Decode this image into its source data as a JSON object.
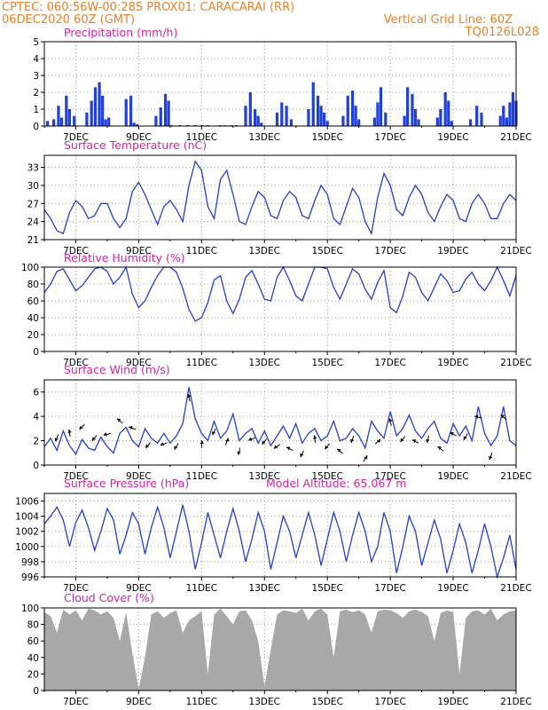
{
  "header": {
    "left_line1": "CPTEC:   060:56W-00:28S   PROX01: CARACARAI (RR)",
    "left_line2": "06DEC2020 60Z (GMT)",
    "right_line2": "Vertical Grid Line: 60Z",
    "right_line3": "TQ0126L028"
  },
  "colors": {
    "line": "#1f3fe0",
    "bar": "#1f3fe0",
    "cloud": "#a8a8a8",
    "title": "#e020a0",
    "header": "#f08020"
  },
  "x_labels": [
    "7DEC",
    "9DEC",
    "11DEC",
    "13DEC",
    "15DEC",
    "17DEC",
    "19DEC",
    "21DEC"
  ],
  "chart_data": [
    {
      "type": "bar",
      "title": "Precipitation (mm/h)",
      "ylim": [
        0,
        5
      ],
      "yticks": [
        "0",
        "1",
        "2",
        "3",
        "4",
        "5"
      ],
      "x": [
        6.1,
        6.3,
        6.45,
        6.55,
        6.7,
        6.8,
        6.95,
        7.35,
        7.5,
        7.62,
        7.75,
        7.85,
        7.95,
        8.05,
        8.6,
        8.75,
        8.85,
        8.95,
        9.55,
        9.7,
        9.85,
        9.95,
        10.05,
        10.3,
        10.55,
        10.8,
        11.0,
        11.2,
        11.6,
        11.75,
        11.95,
        12.1,
        12.4,
        12.55,
        12.7,
        12.8,
        12.9,
        13.4,
        13.55,
        13.7,
        13.85,
        14.4,
        14.55,
        14.7,
        14.8,
        14.9,
        15.0,
        15.5,
        15.65,
        15.8,
        15.9,
        16.0,
        16.5,
        16.6,
        16.7,
        16.85,
        17.45,
        17.55,
        17.7,
        17.8,
        17.9,
        18.5,
        18.6,
        18.75,
        18.85,
        18.95,
        19.55,
        19.75,
        19.9,
        20.5,
        20.6,
        20.7,
        20.8,
        20.9,
        21.0
      ],
      "values": [
        0.3,
        0.4,
        1.2,
        0.5,
        1.8,
        1.0,
        0.6,
        0.8,
        1.5,
        2.3,
        2.6,
        1.8,
        0.4,
        0.5,
        1.6,
        1.8,
        0.2,
        0.1,
        0.6,
        1.1,
        1.9,
        1.5,
        0.05,
        0.05,
        0.05,
        0.05,
        0.05,
        0.05,
        0.05,
        0.05,
        0.05,
        0.05,
        1.2,
        2.0,
        1.0,
        0.6,
        0.2,
        0.8,
        1.4,
        1.2,
        0.4,
        1.0,
        2.6,
        1.8,
        1.2,
        0.8,
        0.3,
        0.6,
        1.8,
        2.1,
        1.2,
        0.4,
        0.5,
        1.4,
        2.3,
        0.8,
        0.6,
        2.3,
        1.9,
        1.0,
        0.4,
        0.5,
        1.0,
        2.0,
        1.5,
        0.3,
        0.4,
        1.2,
        0.8,
        0.6,
        1.2,
        0.5,
        1.4,
        2.0,
        1.5
      ]
    },
    {
      "type": "line",
      "title": "Surface Temperature (nC)",
      "ylim": [
        21,
        35
      ],
      "yticks": [
        "21",
        "24",
        "27",
        "30",
        "33"
      ],
      "x": [
        6.0,
        6.2,
        6.4,
        6.6,
        6.8,
        7.0,
        7.2,
        7.4,
        7.6,
        7.8,
        8.0,
        8.2,
        8.4,
        8.6,
        8.8,
        9.0,
        9.2,
        9.4,
        9.6,
        9.8,
        10.0,
        10.2,
        10.4,
        10.6,
        10.8,
        11.0,
        11.2,
        11.4,
        11.6,
        11.8,
        12.0,
        12.2,
        12.4,
        12.6,
        12.8,
        13.0,
        13.2,
        13.4,
        13.6,
        13.8,
        14.0,
        14.2,
        14.4,
        14.6,
        14.8,
        15.0,
        15.2,
        15.4,
        15.6,
        15.8,
        16.0,
        16.2,
        16.4,
        16.6,
        16.8,
        17.0,
        17.2,
        17.4,
        17.6,
        17.8,
        18.0,
        18.2,
        18.4,
        18.6,
        18.8,
        19.0,
        19.2,
        19.4,
        19.6,
        19.8,
        20.0,
        20.2,
        20.4,
        20.6,
        20.8,
        21.0
      ],
      "values": [
        26,
        24.5,
        22.5,
        22,
        25.5,
        27.5,
        26.5,
        24.5,
        25,
        27,
        27,
        24.5,
        23,
        24.5,
        29,
        30.5,
        28.5,
        26,
        23.5,
        26.5,
        27.5,
        26,
        24,
        30,
        34,
        32.5,
        26.5,
        24.5,
        31,
        32.5,
        28.5,
        24,
        23.5,
        26.5,
        29,
        28,
        25,
        24.5,
        27.5,
        29,
        28,
        25,
        24.5,
        27.5,
        30,
        28.5,
        24.5,
        23.5,
        26.5,
        29.5,
        28,
        24,
        22,
        28,
        32,
        30,
        26,
        25,
        28,
        30,
        28.5,
        25.5,
        24,
        26.5,
        28.5,
        27.5,
        24.5,
        24,
        27,
        28.5,
        27,
        24.5,
        24.5,
        27,
        28.5,
        27.5
      ]
    },
    {
      "type": "line",
      "title": "Relative Humidity (%)",
      "ylim": [
        0,
        100
      ],
      "yticks": [
        "0",
        "20",
        "40",
        "60",
        "80",
        "100"
      ],
      "x": [
        6.0,
        6.2,
        6.4,
        6.6,
        6.8,
        7.0,
        7.2,
        7.4,
        7.6,
        7.8,
        8.0,
        8.2,
        8.4,
        8.6,
        8.8,
        9.0,
        9.2,
        9.4,
        9.6,
        9.8,
        10.0,
        10.2,
        10.4,
        10.6,
        10.8,
        11.0,
        11.2,
        11.4,
        11.6,
        11.8,
        12.0,
        12.2,
        12.4,
        12.6,
        12.8,
        13.0,
        13.2,
        13.4,
        13.6,
        13.8,
        14.0,
        14.2,
        14.4,
        14.6,
        14.8,
        15.0,
        15.2,
        15.4,
        15.6,
        15.8,
        16.0,
        16.2,
        16.4,
        16.6,
        16.8,
        17.0,
        17.2,
        17.4,
        17.6,
        17.8,
        18.0,
        18.2,
        18.4,
        18.6,
        18.8,
        19.0,
        19.2,
        19.4,
        19.6,
        19.8,
        20.0,
        20.2,
        20.4,
        20.6,
        20.8,
        21.0
      ],
      "values": [
        70,
        80,
        95,
        98,
        85,
        72,
        78,
        88,
        98,
        100,
        95,
        80,
        88,
        100,
        68,
        52,
        60,
        76,
        90,
        100,
        100,
        94,
        75,
        50,
        36,
        40,
        58,
        85,
        90,
        60,
        45,
        62,
        88,
        96,
        80,
        62,
        60,
        88,
        100,
        84,
        66,
        60,
        80,
        100,
        100,
        98,
        76,
        62,
        80,
        98,
        92,
        74,
        62,
        82,
        96,
        52,
        46,
        66,
        94,
        88,
        70,
        60,
        76,
        92,
        84,
        70,
        72,
        86,
        94,
        80,
        72,
        84,
        100,
        84,
        66,
        90
      ]
    },
    {
      "type": "line",
      "title": "Surface Wind (m/s)",
      "ylim": [
        0,
        7
      ],
      "yticks": [
        "0",
        "2",
        "4",
        "6"
      ],
      "x": [
        6.0,
        6.2,
        6.4,
        6.6,
        6.8,
        7.0,
        7.2,
        7.4,
        7.6,
        7.8,
        8.0,
        8.2,
        8.4,
        8.6,
        8.8,
        9.0,
        9.2,
        9.4,
        9.6,
        9.8,
        10.0,
        10.2,
        10.4,
        10.6,
        10.8,
        11.0,
        11.2,
        11.4,
        11.6,
        11.8,
        12.0,
        12.2,
        12.4,
        12.6,
        12.8,
        13.0,
        13.2,
        13.4,
        13.6,
        13.8,
        14.0,
        14.2,
        14.4,
        14.6,
        14.8,
        15.0,
        15.2,
        15.4,
        15.6,
        15.8,
        16.0,
        16.2,
        16.4,
        16.6,
        16.8,
        17.0,
        17.2,
        17.4,
        17.6,
        17.8,
        18.0,
        18.2,
        18.4,
        18.6,
        18.8,
        19.0,
        19.2,
        19.4,
        19.6,
        19.8,
        20.0,
        20.2,
        20.4,
        20.6,
        20.8,
        21.0
      ],
      "values": [
        1.5,
        2.2,
        1.2,
        2.8,
        1.6,
        0.9,
        2.1,
        1.4,
        1.2,
        2.3,
        1.5,
        1.0,
        2.6,
        3.1,
        2.0,
        1.5,
        3.0,
        2.2,
        1.8,
        2.6,
        1.8,
        2.4,
        3.4,
        6.4,
        3.8,
        2.6,
        2.0,
        3.6,
        2.2,
        2.8,
        4.2,
        2.0,
        2.6,
        3.0,
        1.8,
        2.8,
        1.6,
        2.4,
        3.2,
        2.2,
        3.4,
        1.8,
        2.6,
        3.0,
        2.0,
        2.4,
        3.6,
        2.0,
        2.2,
        3.0,
        2.4,
        1.4,
        3.6,
        2.8,
        2.2,
        4.4,
        2.4,
        3.0,
        4.1,
        2.8,
        2.2,
        3.0,
        3.6,
        2.2,
        1.8,
        3.4,
        2.4,
        3.2,
        2.0,
        4.8,
        2.6,
        1.6,
        2.4,
        4.8,
        2.0,
        1.6
      ],
      "arrows": [
        {
          "x": 6.4,
          "u": -0.3,
          "v": -1
        },
        {
          "x": 6.8,
          "u": -0.2,
          "v": 1
        },
        {
          "x": 7.2,
          "u": -0.7,
          "v": -0.7
        },
        {
          "x": 7.6,
          "u": -0.6,
          "v": -0.8
        },
        {
          "x": 8.0,
          "u": -1,
          "v": -0.3
        },
        {
          "x": 8.4,
          "u": -0.8,
          "v": 0.6
        },
        {
          "x": 8.8,
          "u": -1,
          "v": 0.3
        },
        {
          "x": 9.3,
          "u": -0.6,
          "v": -0.8
        },
        {
          "x": 9.8,
          "u": -0.9,
          "v": -0.4
        },
        {
          "x": 10.2,
          "u": -0.5,
          "v": -0.9
        },
        {
          "x": 10.6,
          "u": -0.3,
          "v": 1
        },
        {
          "x": 11.0,
          "u": 0,
          "v": 1
        },
        {
          "x": 11.4,
          "u": -0.4,
          "v": -0.9
        },
        {
          "x": 11.8,
          "u": 0.3,
          "v": 1
        },
        {
          "x": 12.2,
          "u": -0.2,
          "v": -1
        },
        {
          "x": 12.6,
          "u": -0.9,
          "v": -0.4
        },
        {
          "x": 13.0,
          "u": -0.6,
          "v": -0.8
        },
        {
          "x": 13.4,
          "u": -0.8,
          "v": -0.6
        },
        {
          "x": 13.8,
          "u": -0.9,
          "v": 0.4
        },
        {
          "x": 14.2,
          "u": -0.4,
          "v": -0.9
        },
        {
          "x": 14.6,
          "u": -0.2,
          "v": 1
        },
        {
          "x": 15.0,
          "u": -0.6,
          "v": -0.8
        },
        {
          "x": 15.4,
          "u": -0.8,
          "v": 0.6
        },
        {
          "x": 15.8,
          "u": -0.3,
          "v": -1
        },
        {
          "x": 16.2,
          "u": 0.5,
          "v": 0.9
        },
        {
          "x": 16.6,
          "u": 0.7,
          "v": 0.7
        },
        {
          "x": 17.0,
          "u": -0.3,
          "v": 1
        },
        {
          "x": 17.4,
          "u": -0.6,
          "v": -0.8
        },
        {
          "x": 17.8,
          "u": -0.9,
          "v": 0.4
        },
        {
          "x": 18.2,
          "u": -0.2,
          "v": -1
        },
        {
          "x": 18.6,
          "u": -0.8,
          "v": 0.6
        },
        {
          "x": 19.0,
          "u": -0.9,
          "v": 0.4
        },
        {
          "x": 19.4,
          "u": -0.5,
          "v": -0.9
        },
        {
          "x": 19.8,
          "u": -1,
          "v": 0.2
        },
        {
          "x": 20.2,
          "u": -0.3,
          "v": -1
        },
        {
          "x": 20.6,
          "u": -0.8,
          "v": 0.6
        }
      ]
    },
    {
      "type": "line",
      "title": "Surface Pressure (hPa)",
      "annotation": "Model Altitude: 65.067 m",
      "ylim": [
        996,
        1007
      ],
      "yticks": [
        "996",
        "998",
        "1000",
        "1002",
        "1004",
        "1006"
      ],
      "x": [
        6.0,
        6.2,
        6.4,
        6.6,
        6.8,
        7.0,
        7.2,
        7.4,
        7.6,
        7.8,
        8.0,
        8.2,
        8.4,
        8.6,
        8.8,
        9.0,
        9.2,
        9.4,
        9.6,
        9.8,
        10.0,
        10.2,
        10.4,
        10.6,
        10.8,
        11.0,
        11.2,
        11.4,
        11.6,
        11.8,
        12.0,
        12.2,
        12.4,
        12.6,
        12.8,
        13.0,
        13.2,
        13.4,
        13.6,
        13.8,
        14.0,
        14.2,
        14.4,
        14.6,
        14.8,
        15.0,
        15.2,
        15.4,
        15.6,
        15.8,
        16.0,
        16.2,
        16.4,
        16.6,
        16.8,
        17.0,
        17.2,
        17.4,
        17.6,
        17.8,
        18.0,
        18.2,
        18.4,
        18.6,
        18.8,
        19.0,
        19.2,
        19.4,
        19.6,
        19.8,
        20.0,
        20.2,
        20.4,
        20.6,
        20.8,
        21.0
      ],
      "values": [
        1003,
        1004,
        1005.2,
        1003.5,
        1000,
        1003.2,
        1004.8,
        1002.5,
        999.5,
        1002,
        1005,
        1003.5,
        999,
        1001.5,
        1004.5,
        1003,
        999,
        1002.5,
        1005.2,
        1002.5,
        998.5,
        1002,
        1005.5,
        1002,
        997,
        1000.5,
        1004.5,
        1001.5,
        998.5,
        1002,
        1005,
        1002,
        998,
        1001,
        1004.5,
        1002,
        997,
        1000.5,
        1004,
        1002,
        998.5,
        1001.5,
        1004.5,
        1001.5,
        997.5,
        1001,
        1004.5,
        1002,
        998,
        1001.5,
        1004.5,
        1002,
        998,
        1000,
        1004.5,
        1002,
        996.5,
        1000,
        1004,
        1002,
        997.5,
        1000.5,
        1003.5,
        1001,
        996.5,
        999.5,
        1003,
        1000.5,
        996.5,
        999.5,
        1003,
        1000,
        996,
        998.5,
        1001.5,
        997
      ]
    },
    {
      "type": "area",
      "title": "Cloud Cover (%)",
      "ylim": [
        0,
        100
      ],
      "yticks": [
        "0",
        "20",
        "40",
        "60",
        "80",
        "100"
      ],
      "x": [
        6.0,
        6.2,
        6.4,
        6.6,
        6.8,
        7.0,
        7.2,
        7.4,
        7.6,
        7.8,
        8.0,
        8.2,
        8.4,
        8.6,
        8.8,
        9.0,
        9.2,
        9.4,
        9.6,
        9.8,
        10.0,
        10.2,
        10.4,
        10.6,
        10.8,
        11.0,
        11.2,
        11.4,
        11.6,
        11.8,
        12.0,
        12.2,
        12.4,
        12.6,
        12.8,
        13.0,
        13.2,
        13.4,
        13.6,
        13.8,
        14.0,
        14.2,
        14.4,
        14.6,
        14.8,
        15.0,
        15.2,
        15.4,
        15.6,
        15.8,
        16.0,
        16.2,
        16.4,
        16.6,
        16.8,
        17.0,
        17.2,
        17.4,
        17.6,
        17.8,
        18.0,
        18.2,
        18.4,
        18.6,
        18.8,
        19.0,
        19.2,
        19.4,
        19.6,
        19.8,
        20.0,
        20.2,
        20.4,
        20.6,
        20.8,
        21.0
      ],
      "values": [
        95,
        90,
        70,
        98,
        92,
        97,
        85,
        99,
        97,
        92,
        96,
        88,
        60,
        95,
        45,
        2,
        40,
        92,
        96,
        88,
        94,
        97,
        70,
        85,
        90,
        96,
        20,
        92,
        99,
        90,
        80,
        96,
        97,
        85,
        60,
        5,
        50,
        92,
        97,
        96,
        94,
        99,
        85,
        96,
        99,
        92,
        40,
        96,
        98,
        95,
        97,
        92,
        70,
        96,
        98,
        97,
        94,
        88,
        96,
        98,
        95,
        90,
        60,
        94,
        97,
        95,
        20,
        88,
        96,
        97,
        92,
        99,
        85,
        92,
        96,
        97
      ]
    }
  ]
}
